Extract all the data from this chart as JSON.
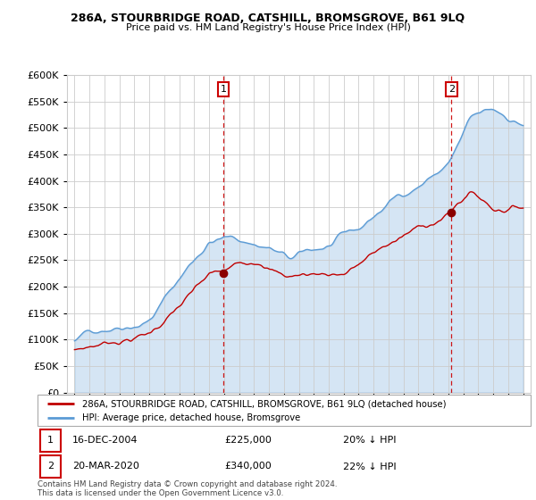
{
  "title1": "286A, STOURBRIDGE ROAD, CATSHILL, BROMSGROVE, B61 9LQ",
  "title2": "Price paid vs. HM Land Registry's House Price Index (HPI)",
  "legend1": "286A, STOURBRIDGE ROAD, CATSHILL, BROMSGROVE, B61 9LQ (detached house)",
  "legend2": "HPI: Average price, detached house, Bromsgrove",
  "annotation1_date": "16-DEC-2004",
  "annotation1_price": "£225,000",
  "annotation1_hpi": "20% ↓ HPI",
  "annotation2_date": "20-MAR-2020",
  "annotation2_price": "£340,000",
  "annotation2_hpi": "22% ↓ HPI",
  "footer": "Contains HM Land Registry data © Crown copyright and database right 2024.\nThis data is licensed under the Open Government Licence v3.0.",
  "sale1_year": 2004.96,
  "sale1_price": 225000,
  "sale2_year": 2020.21,
  "sale2_price": 340000,
  "hpi_color": "#5b9bd5",
  "hpi_fill": "#daeaf7",
  "price_color": "#c00000",
  "vline_color": "#cc0000",
  "ylim": [
    0,
    600000
  ],
  "yticks": [
    0,
    50000,
    100000,
    150000,
    200000,
    250000,
    300000,
    350000,
    400000,
    450000,
    500000,
    550000,
    600000
  ],
  "xlim_start": 1995,
  "xlim_end": 2025,
  "background": "#ffffff"
}
